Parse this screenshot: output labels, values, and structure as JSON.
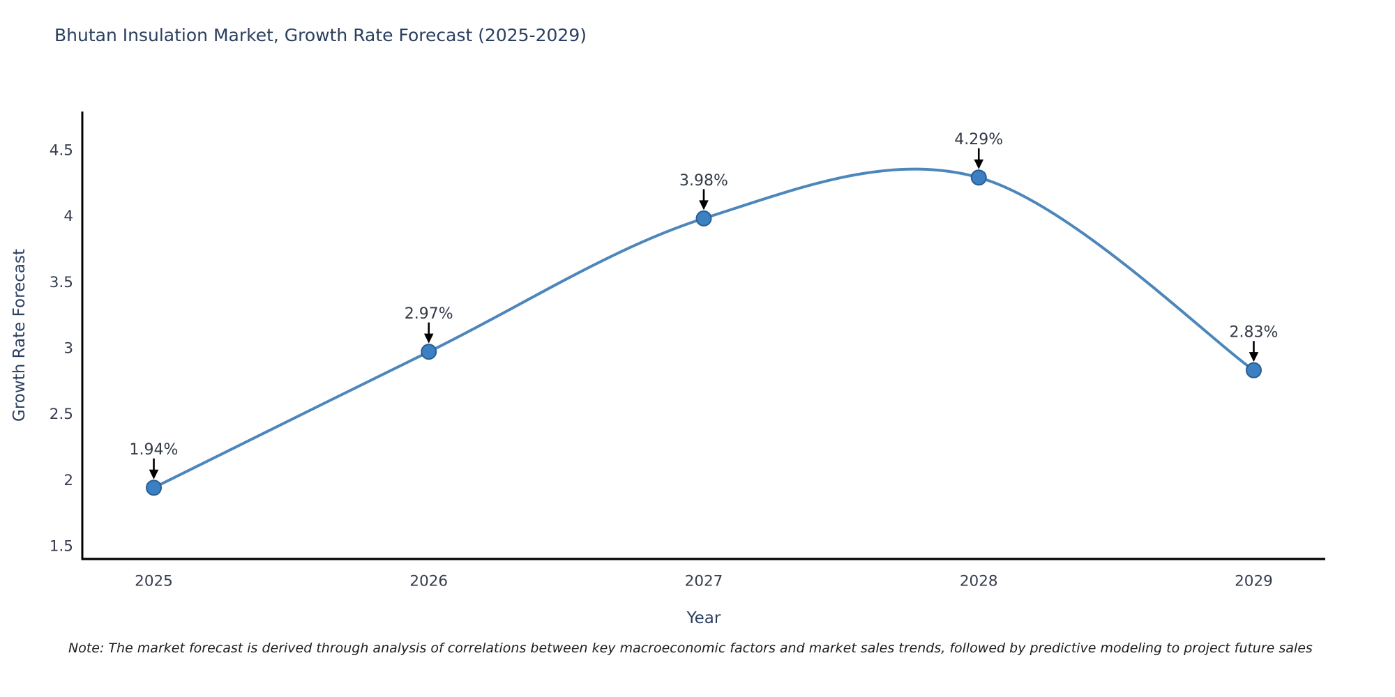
{
  "chart_data": {
    "type": "line",
    "title": "Bhutan Insulation Market, Growth Rate Forecast (2025-2029)",
    "xlabel": "Year",
    "ylabel": "Growth Rate Forecast",
    "x": [
      2025,
      2026,
      2027,
      2028,
      2029
    ],
    "y": [
      1.94,
      2.97,
      3.98,
      4.29,
      2.83
    ],
    "point_labels": [
      "1.94%",
      "2.97%",
      "3.98%",
      "4.29%",
      "2.83%"
    ],
    "line_shape": "spline",
    "grid": false,
    "legend": "none",
    "xlim": [
      2024.74,
      2029.26
    ],
    "ylim": [
      1.4,
      4.79
    ],
    "xticks": {
      "values": [
        2025,
        2026,
        2027,
        2028,
        2029
      ],
      "labels": [
        "2025",
        "2026",
        "2027",
        "2028",
        "2029"
      ]
    },
    "yticks": {
      "values": [
        1.5,
        2,
        2.5,
        3,
        3.5,
        4,
        4.5
      ],
      "labels": [
        "1.5",
        "2",
        "2.5",
        "3",
        "3.5",
        "4",
        "4.5"
      ]
    },
    "colors": {
      "line": "#4d86bb",
      "marker_fill": "#3c80c4",
      "marker_edge": "#2a5d8f",
      "axis_line": "#000000",
      "title_text": "#2a3f5f",
      "tick_text": "#353c4e",
      "annotation_text": "#333a45",
      "arrow": "#000000",
      "background": "#ffffff"
    }
  },
  "note": {
    "text": "Note: The market forecast is derived through analysis of correlations between key macroeconomic factors and market sales trends, followed by predictive modeling to project future sales"
  }
}
